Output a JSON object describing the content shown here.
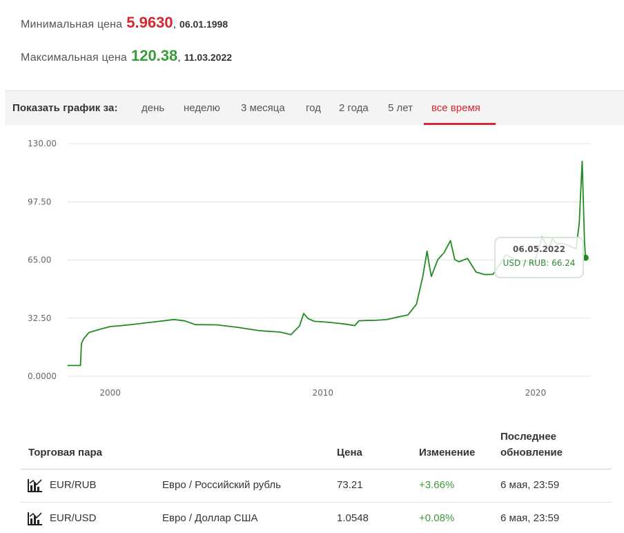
{
  "stats": {
    "min_label": "Минимальная цена",
    "min_value": "5.9630",
    "min_sep": ",",
    "min_date": "06.01.1998",
    "max_label": "Максимальная цена",
    "max_value": "120.38",
    "max_sep": ",",
    "max_date": "11.03.2022",
    "min_color": "#d9262c",
    "max_color": "#3a9a3a"
  },
  "range": {
    "label": "Показать график за:",
    "items": [
      "день",
      "неделю",
      "3 месяца",
      "год",
      "2 года",
      "5 лет",
      "все время"
    ],
    "active": "все время",
    "accent_color": "#d9262c"
  },
  "chart_data": {
    "type": "line",
    "series": [
      {
        "name": "USD / RUB",
        "color": "#1f8a1f",
        "x": [
          1998.0,
          1998.6,
          1998.65,
          1998.75,
          1999.0,
          1999.5,
          2000.0,
          2000.5,
          2001.0,
          2002.0,
          2003.0,
          2003.5,
          2004.0,
          2005.0,
          2006.0,
          2007.0,
          2008.0,
          2008.5,
          2008.9,
          2009.1,
          2009.3,
          2009.6,
          2010.0,
          2010.5,
          2011.0,
          2011.5,
          2011.7,
          2012.0,
          2012.5,
          2013.0,
          2013.5,
          2014.0,
          2014.4,
          2014.7,
          2014.9,
          2015.0,
          2015.1,
          2015.4,
          2015.7,
          2016.0,
          2016.2,
          2016.4,
          2016.8,
          2017.2,
          2017.6,
          2018.0,
          2018.3,
          2018.6,
          2018.9,
          2019.2,
          2019.5,
          2019.9,
          2020.2,
          2020.3,
          2020.6,
          2020.8,
          2021.0,
          2021.3,
          2021.6,
          2021.9,
          2022.05,
          2022.19,
          2022.3,
          2022.35
        ],
        "y": [
          6.0,
          6.2,
          18.0,
          21.0,
          24.5,
          26.0,
          28.0,
          28.2,
          28.8,
          30.5,
          31.5,
          31.0,
          29.0,
          28.5,
          27.5,
          25.5,
          24.5,
          23.5,
          28.0,
          35.0,
          32.5,
          30.5,
          30.5,
          30.0,
          29.0,
          28.5,
          31.0,
          31.0,
          31.5,
          31.5,
          33.0,
          34.5,
          40.0,
          56.0,
          70.0,
          62.0,
          56.0,
          65.0,
          69.0,
          76.0,
          65.0,
          64.0,
          66.0,
          58.0,
          57.0,
          57.0,
          62.0,
          68.0,
          66.0,
          64.0,
          65.0,
          62.0,
          73.0,
          78.0,
          71.0,
          77.0,
          74.0,
          74.0,
          73.0,
          71.0,
          85.0,
          120.38,
          75.0,
          66.24
        ]
      }
    ],
    "xlim": [
      1998.0,
      2022.6
    ],
    "ylim": [
      0,
      130
    ],
    "y_ticks": [
      "130.00",
      "97.50",
      "65.00",
      "32.50",
      "0.0000"
    ],
    "y_tick_values": [
      130,
      97.5,
      65,
      32.5,
      0
    ],
    "x_ticks": [
      "2000",
      "2010",
      "2020"
    ],
    "x_tick_values": [
      2000,
      2010,
      2020
    ],
    "grid": true,
    "tooltip": {
      "date": "06.05.2022",
      "label": "USD / RUB: 66.24",
      "x": 2022.35,
      "y": 66.24
    }
  },
  "table": {
    "headers": {
      "pair": "Торговая пара",
      "price": "Цена",
      "change": "Изменение",
      "updated_line1": "Последнее",
      "updated_line2": "обновление"
    },
    "rows": [
      {
        "pair": "EUR/RUB",
        "name": "Евро / Российский рубль",
        "price": "73.21",
        "change": "+3.66%",
        "updated": "6 мая, 23:59"
      },
      {
        "pair": "EUR/USD",
        "name": "Евро / Доллар США",
        "price": "1.0548",
        "change": "+0.08%",
        "updated": "6 мая, 23:59"
      }
    ],
    "positive_color": "#3a9a3a"
  }
}
